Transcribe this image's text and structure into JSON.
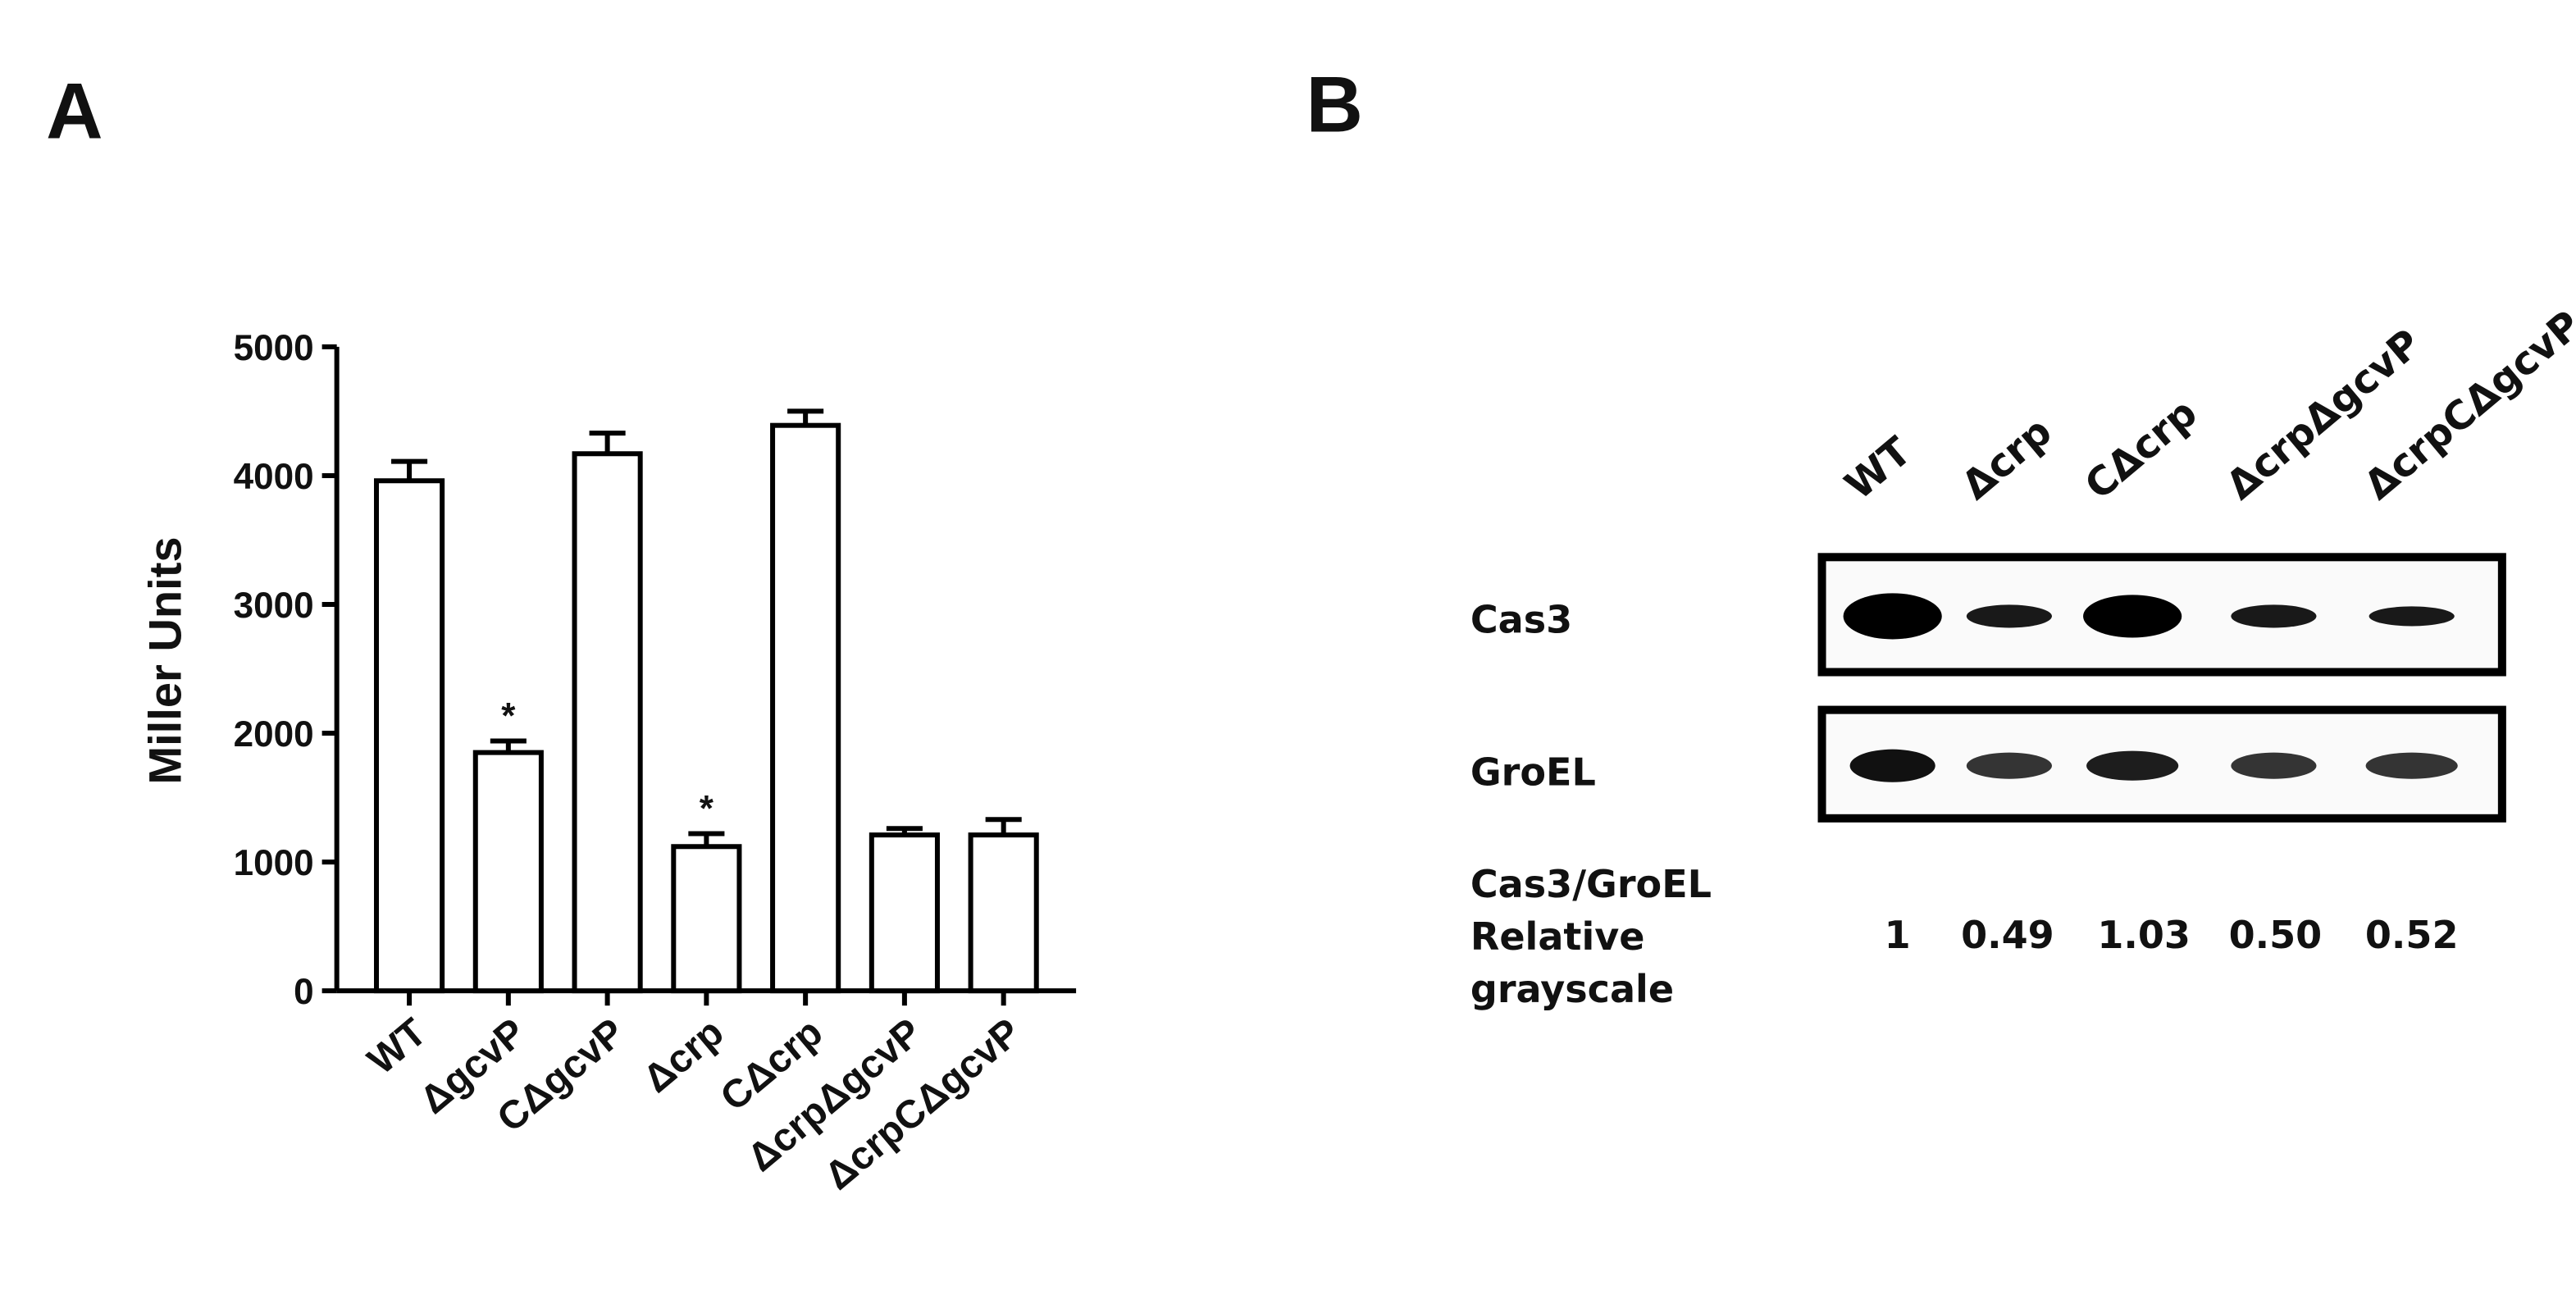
{
  "chart_data": {
    "type": "bar",
    "panel_label": "A",
    "ylabel": "Miller Units",
    "categories": [
      "WT",
      "ΔgcvP",
      "CΔgcvP",
      "Δcrp",
      "CΔcrp",
      "ΔcrpΔgcvP",
      "ΔcrpCΔgcvP"
    ],
    "values": [
      3960,
      1850,
      4170,
      1120,
      4390,
      1210,
      1210
    ],
    "errors": [
      150,
      90,
      160,
      100,
      110,
      50,
      120
    ],
    "significance": [
      null,
      "*",
      null,
      "*",
      null,
      null,
      null
    ],
    "color": "#ffffff",
    "ylim": [
      0,
      5000
    ],
    "yticks": [
      0,
      1000,
      2000,
      3000,
      4000,
      5000
    ],
    "grid": false
  },
  "blot": {
    "panel_label": "B",
    "lanes": [
      "WT",
      "Δcrp",
      "CΔcrp",
      "ΔcrpΔgcvP",
      "ΔcrpCΔgcvP"
    ],
    "rows": [
      "Cas3",
      "GroEL"
    ],
    "ratio_label": [
      "Cas3/GroEL",
      "Relative",
      "grayscale"
    ],
    "ratios": [
      "1",
      "0.49",
      "1.03",
      "0.50",
      "0.52"
    ]
  }
}
